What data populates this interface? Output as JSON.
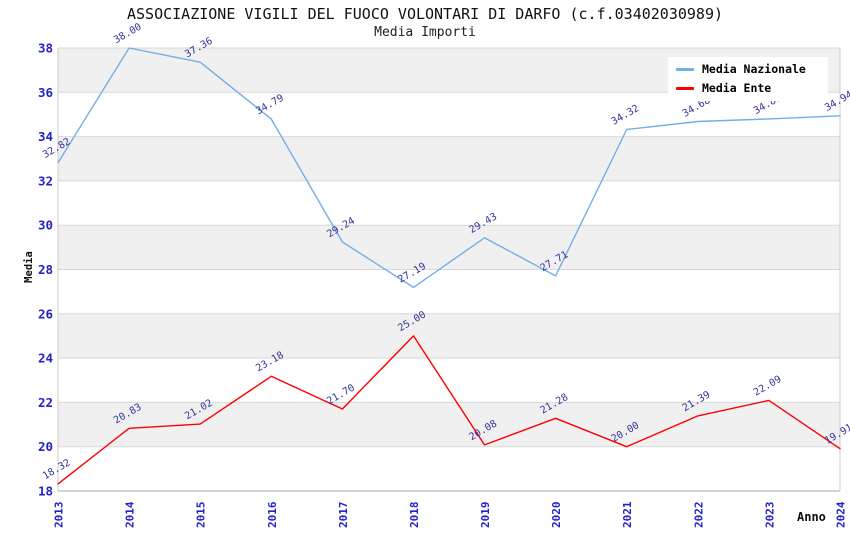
{
  "chart_data": {
    "type": "line",
    "title": "ASSOCIAZIONE VIGILI DEL FUOCO VOLONTARI DI DARFO (c.f.03402030989)",
    "subtitle": "Media Importi",
    "xlabel": "Anno",
    "ylabel": "Media",
    "x_ticks": [
      "2013",
      "2014",
      "2015",
      "2016",
      "2017",
      "2018",
      "2019",
      "2020",
      "2021",
      "2022",
      "2023",
      "2024"
    ],
    "ylim": [
      18,
      38
    ],
    "ytick_step": 2,
    "grid": "horizontal gridlines with alternating gray bands every 2 units",
    "label_precision": 2,
    "legend": {
      "position": "top-right",
      "entries": [
        "Media Nazionale",
        "Media Ente"
      ]
    },
    "series": [
      {
        "name": "Media Nazionale",
        "color": "#74aee6",
        "values": [
          32.82,
          38.0,
          37.36,
          34.79,
          29.24,
          27.19,
          29.43,
          27.71,
          34.32,
          34.68,
          34.8,
          34.94
        ]
      },
      {
        "name": "Media Ente",
        "color": "#ff0000",
        "values": [
          18.32,
          20.83,
          21.02,
          23.18,
          21.7,
          25.0,
          20.08,
          21.28,
          20.0,
          21.39,
          22.09,
          19.91
        ]
      }
    ]
  },
  "colors": {
    "band_fill": "#f0f0f0",
    "gridline": "#d9d9d9",
    "axis_line": "#aaaaaa",
    "plot_border": "#cccccc",
    "tick_label": "#2222cc",
    "data_label": "#333399",
    "title_text": "#111111",
    "legend_bg": "#ffffff"
  }
}
